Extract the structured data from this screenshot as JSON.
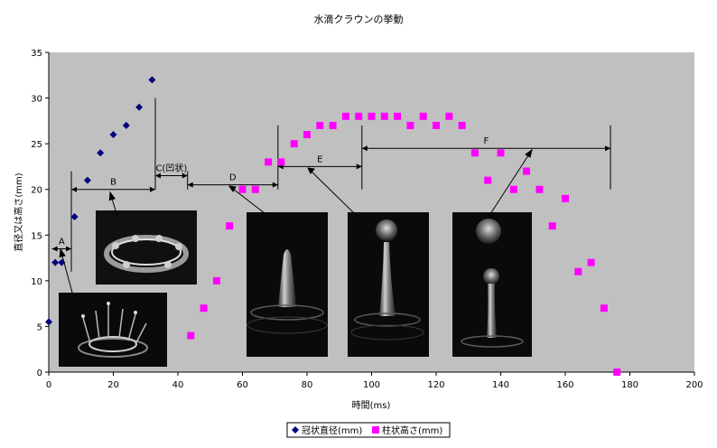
{
  "chart_data": {
    "type": "scatter",
    "title": "水滴クラウンの挙動",
    "xlabel": "時間(ms)",
    "ylabel": "直径又は高さ(mm)",
    "xlim": [
      0,
      200
    ],
    "ylim": [
      0,
      35
    ],
    "x_ticks": [
      0,
      20,
      40,
      60,
      80,
      100,
      120,
      140,
      160,
      180,
      200
    ],
    "y_ticks": [
      0,
      5,
      10,
      15,
      20,
      25,
      30,
      35
    ],
    "grid": false,
    "plot_background": "#c0c0c0",
    "legend_position": "bottom",
    "series": [
      {
        "name": "冠状直径(mm)",
        "marker": "diamond",
        "color": "#000080",
        "points": [
          [
            0,
            5.5
          ],
          [
            2,
            12
          ],
          [
            4,
            12
          ],
          [
            8,
            17
          ],
          [
            12,
            21
          ],
          [
            16,
            24
          ],
          [
            20,
            26
          ],
          [
            24,
            27
          ],
          [
            28,
            29
          ],
          [
            32,
            32
          ]
        ]
      },
      {
        "name": "柱状高さ(mm)",
        "marker": "square",
        "color": "#ff00ff",
        "points": [
          [
            44,
            4
          ],
          [
            48,
            7
          ],
          [
            52,
            10
          ],
          [
            56,
            16
          ],
          [
            60,
            20
          ],
          [
            64,
            20
          ],
          [
            68,
            23
          ],
          [
            72,
            23
          ],
          [
            76,
            25
          ],
          [
            80,
            26
          ],
          [
            84,
            27
          ],
          [
            88,
            27
          ],
          [
            92,
            28
          ],
          [
            96,
            28
          ],
          [
            100,
            28
          ],
          [
            104,
            28
          ],
          [
            108,
            28
          ],
          [
            112,
            27
          ],
          [
            116,
            28
          ],
          [
            120,
            27
          ],
          [
            124,
            28
          ],
          [
            128,
            27
          ],
          [
            132,
            24
          ],
          [
            136,
            21
          ],
          [
            140,
            24
          ],
          [
            144,
            20
          ],
          [
            148,
            22
          ],
          [
            152,
            20
          ],
          [
            156,
            16
          ],
          [
            160,
            19
          ],
          [
            164,
            11
          ],
          [
            168,
            12
          ],
          [
            172,
            7
          ],
          [
            176,
            0
          ]
        ]
      }
    ],
    "phase_dividers": [
      7,
      33,
      43,
      71,
      97,
      174
    ],
    "phases": [
      {
        "label": "A",
        "x1": 1,
        "x2": 7,
        "y": 13.5
      },
      {
        "label": "B",
        "x1": 7,
        "x2": 33,
        "y": 20
      },
      {
        "label": "C(凹状)",
        "x1": 33,
        "x2": 43,
        "y": 21.5
      },
      {
        "label": "D",
        "x1": 43,
        "x2": 71,
        "y": 20.5
      },
      {
        "label": "E",
        "x1": 71,
        "x2": 97,
        "y": 22.5
      },
      {
        "label": "F",
        "x1": 97,
        "x2": 174,
        "y": 24.5
      }
    ]
  }
}
